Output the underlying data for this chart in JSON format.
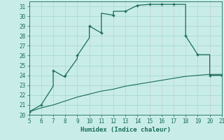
{
  "title": "",
  "xlabel": "Humidex (Indice chaleur)",
  "background_color": "#c8ede8",
  "line_color": "#1a6b5a",
  "xlim": [
    5,
    21
  ],
  "ylim": [
    20,
    31.5
  ],
  "xticks": [
    5,
    6,
    7,
    8,
    9,
    10,
    11,
    12,
    13,
    14,
    15,
    16,
    17,
    18,
    19,
    20,
    21
  ],
  "yticks": [
    20,
    21,
    22,
    23,
    24,
    25,
    26,
    27,
    28,
    29,
    30,
    31
  ],
  "curve1_x": [
    5,
    6,
    7,
    7,
    8,
    8,
    9,
    9,
    10,
    10,
    11,
    11,
    12,
    12,
    13,
    14,
    15,
    16,
    17,
    18,
    18,
    19,
    20,
    20,
    21
  ],
  "curve1_y": [
    20.3,
    21.0,
    22.9,
    24.5,
    23.8,
    24.0,
    25.7,
    26.0,
    27.8,
    29.0,
    28.3,
    30.3,
    30.1,
    30.5,
    30.5,
    31.1,
    31.2,
    31.2,
    31.2,
    31.2,
    28.0,
    26.1,
    26.1,
    24.0,
    24.0
  ],
  "curve2_x": [
    5,
    6,
    7,
    8,
    9,
    10,
    11,
    12,
    13,
    14,
    15,
    16,
    17,
    18,
    19,
    20,
    21
  ],
  "curve2_y": [
    20.3,
    20.7,
    21.0,
    21.4,
    21.8,
    22.1,
    22.4,
    22.6,
    22.9,
    23.1,
    23.3,
    23.5,
    23.7,
    23.9,
    24.0,
    24.1,
    24.1
  ],
  "marker_x": [
    5,
    6,
    7,
    8,
    9,
    10,
    11,
    12,
    13,
    14,
    15,
    16,
    17,
    18,
    19,
    20,
    21
  ],
  "marker_y": [
    20.3,
    21.0,
    24.5,
    24.0,
    26.0,
    29.0,
    28.3,
    30.1,
    30.5,
    31.1,
    31.2,
    31.2,
    31.2,
    28.0,
    26.1,
    24.0,
    24.0
  ],
  "grid_color": "#a8d8d0",
  "grid_color2": "#c0c0a0",
  "font_color": "#1a6b5a"
}
